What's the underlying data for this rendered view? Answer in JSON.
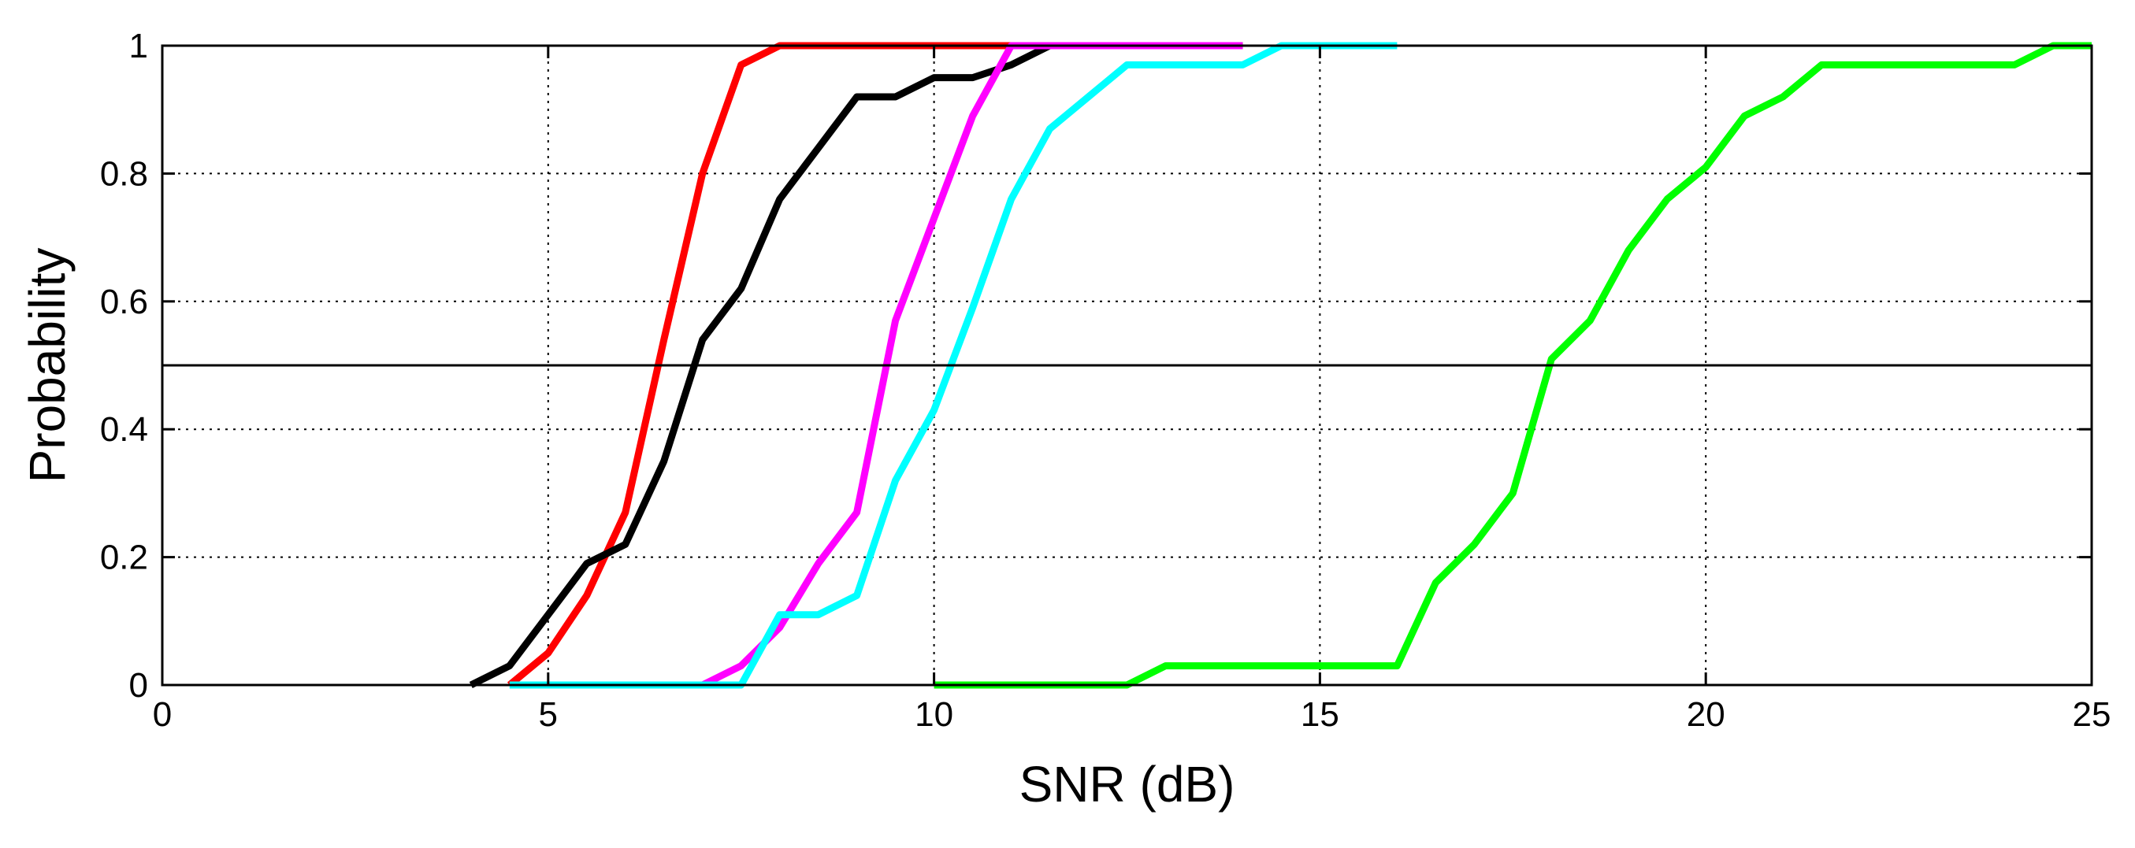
{
  "chart_data": {
    "type": "line",
    "title": "",
    "xlabel": "SNR (dB)",
    "ylabel": "Probability",
    "xlim": [
      0,
      25
    ],
    "ylim": [
      0,
      1
    ],
    "xticks": [
      0,
      5,
      10,
      15,
      20,
      25
    ],
    "xtick_labels": [
      "0",
      "5",
      "10",
      "15",
      "20",
      "25"
    ],
    "yticks": [
      0,
      0.2,
      0.4,
      0.6,
      0.8,
      1
    ],
    "ytick_labels": [
      "0",
      "0.2",
      "0.4",
      "0.6",
      "0.8",
      "1"
    ],
    "grid": true,
    "grid_style": "dotted",
    "legend": "none",
    "reference_line": {
      "y": 0.5,
      "color": "#000000"
    },
    "series": [
      {
        "color": "#ff0000",
        "points": [
          [
            4.5,
            0.0
          ],
          [
            5.0,
            0.05
          ],
          [
            5.5,
            0.14
          ],
          [
            6.0,
            0.27
          ],
          [
            6.5,
            0.54
          ],
          [
            7.0,
            0.8
          ],
          [
            7.5,
            0.97
          ],
          [
            8.0,
            1.0
          ],
          [
            14.0,
            1.0
          ]
        ]
      },
      {
        "color": "#000000",
        "points": [
          [
            4.0,
            0.0
          ],
          [
            4.5,
            0.03
          ],
          [
            5.0,
            0.11
          ],
          [
            5.5,
            0.19
          ],
          [
            6.0,
            0.22
          ],
          [
            6.5,
            0.35
          ],
          [
            7.0,
            0.54
          ],
          [
            7.5,
            0.62
          ],
          [
            8.0,
            0.76
          ],
          [
            8.5,
            0.84
          ],
          [
            9.0,
            0.92
          ],
          [
            9.5,
            0.92
          ],
          [
            10.0,
            0.95
          ],
          [
            10.5,
            0.95
          ],
          [
            11.0,
            0.97
          ],
          [
            11.5,
            1.0
          ],
          [
            14.0,
            1.0
          ]
        ]
      },
      {
        "color": "#ff00ff",
        "points": [
          [
            6.0,
            0.0
          ],
          [
            7.0,
            0.0
          ],
          [
            7.5,
            0.03
          ],
          [
            8.0,
            0.09
          ],
          [
            8.5,
            0.19
          ],
          [
            9.0,
            0.27
          ],
          [
            9.5,
            0.57
          ],
          [
            10.0,
            0.73
          ],
          [
            10.5,
            0.89
          ],
          [
            11.0,
            1.0
          ],
          [
            14.0,
            1.0
          ]
        ]
      },
      {
        "color": "#00ffff",
        "points": [
          [
            4.5,
            0.0
          ],
          [
            7.5,
            0.0
          ],
          [
            8.0,
            0.11
          ],
          [
            8.5,
            0.11
          ],
          [
            9.0,
            0.14
          ],
          [
            9.5,
            0.32
          ],
          [
            10.0,
            0.43
          ],
          [
            10.5,
            0.59
          ],
          [
            11.0,
            0.76
          ],
          [
            11.5,
            0.87
          ],
          [
            12.0,
            0.92
          ],
          [
            12.5,
            0.97
          ],
          [
            14.0,
            0.97
          ],
          [
            14.5,
            1.0
          ],
          [
            16.0,
            1.0
          ]
        ]
      },
      {
        "color": "#00ff00",
        "points": [
          [
            10.0,
            0.0
          ],
          [
            12.5,
            0.0
          ],
          [
            13.0,
            0.03
          ],
          [
            16.0,
            0.03
          ],
          [
            16.5,
            0.16
          ],
          [
            17.0,
            0.22
          ],
          [
            17.5,
            0.3
          ],
          [
            18.0,
            0.51
          ],
          [
            18.5,
            0.57
          ],
          [
            19.0,
            0.68
          ],
          [
            19.5,
            0.76
          ],
          [
            20.0,
            0.81
          ],
          [
            20.5,
            0.89
          ],
          [
            21.0,
            0.92
          ],
          [
            21.5,
            0.97
          ],
          [
            24.0,
            0.97
          ],
          [
            24.5,
            1.0
          ],
          [
            25.0,
            1.0
          ]
        ]
      }
    ]
  }
}
